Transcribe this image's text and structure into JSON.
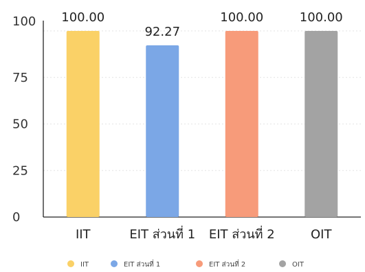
{
  "chart_data": {
    "type": "bar",
    "categories": [
      "IIT",
      "EIT ส่วนที่ 1",
      "EIT ส่วนที่ 2",
      "OIT"
    ],
    "values": [
      100.0,
      92.27,
      100.0,
      100.0
    ],
    "data_labels": [
      "100.00",
      "92.27",
      "100.00",
      "100.00"
    ],
    "colors": [
      "#FAD167",
      "#7BA7E6",
      "#F79B7A",
      "#A3A3A3"
    ],
    "y_ticks": [
      0,
      25,
      50,
      75,
      100
    ],
    "ylim": [
      0,
      100
    ],
    "grid": true,
    "legend_position": "bottom",
    "legend": [
      "IIT",
      "EIT ส่วนที่ 1",
      "EIT ส่วนที่ 2",
      "OIT"
    ],
    "title": "",
    "xlabel": "",
    "ylabel": ""
  }
}
